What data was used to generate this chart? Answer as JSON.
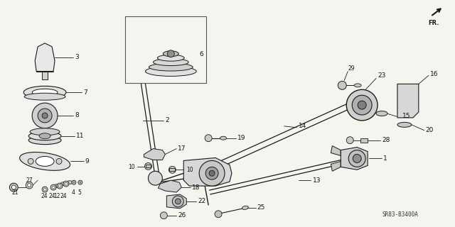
{
  "bg_color": "#f5f5f0",
  "diagram_code": "SR83-B3400A",
  "line_color": "#1a1a1a",
  "label_color": "#111111"
}
